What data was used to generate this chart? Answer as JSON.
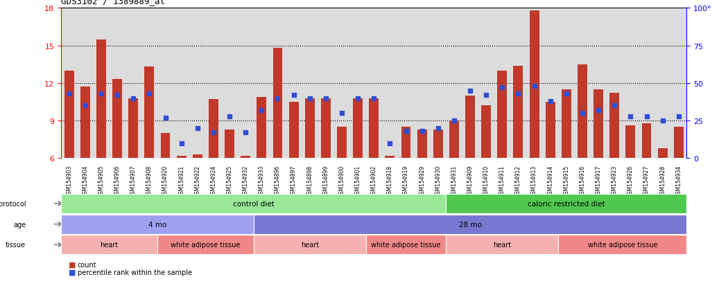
{
  "title": "GDS3102 / 1389889_at",
  "samples": [
    "GSM154903",
    "GSM154904",
    "GSM154905",
    "GSM154906",
    "GSM154907",
    "GSM154908",
    "GSM154920",
    "GSM154921",
    "GSM154922",
    "GSM154924",
    "GSM154925",
    "GSM154932",
    "GSM154933",
    "GSM154896",
    "GSM154897",
    "GSM154898",
    "GSM154899",
    "GSM154900",
    "GSM154901",
    "GSM154902",
    "GSM154918",
    "GSM154919",
    "GSM154929",
    "GSM154930",
    "GSM154931",
    "GSM154909",
    "GSM154910",
    "GSM154911",
    "GSM154912",
    "GSM154913",
    "GSM154914",
    "GSM154915",
    "GSM154916",
    "GSM154917",
    "GSM154923",
    "GSM154926",
    "GSM154927",
    "GSM154928",
    "GSM154934"
  ],
  "counts": [
    13.0,
    11.7,
    15.5,
    12.3,
    10.8,
    13.3,
    8.0,
    6.2,
    6.3,
    10.7,
    8.3,
    6.2,
    10.9,
    14.8,
    10.5,
    10.8,
    10.8,
    8.5,
    10.8,
    10.8,
    6.2,
    8.5,
    8.3,
    8.3,
    9.0,
    11.0,
    10.2,
    13.0,
    13.4,
    17.8,
    10.5,
    11.5,
    13.5,
    11.5,
    11.2,
    8.6,
    8.8,
    6.8,
    8.5
  ],
  "percentiles": [
    43,
    35,
    43,
    42,
    40,
    43,
    27,
    10,
    20,
    17,
    28,
    17,
    32,
    40,
    42,
    40,
    40,
    30,
    40,
    40,
    10,
    18,
    18,
    20,
    25,
    45,
    42,
    47,
    43,
    48,
    38,
    43,
    30,
    32,
    35,
    28,
    28,
    25,
    28
  ],
  "ylim_left": [
    6,
    18
  ],
  "ylim_right": [
    0,
    100
  ],
  "yticks_left": [
    6,
    9,
    12,
    15,
    18
  ],
  "yticks_right": [
    0,
    25,
    50,
    75,
    100
  ],
  "bar_color": "#C0392B",
  "dot_color": "#2E4FD8",
  "bg_color": "#DCDCDC",
  "grid_values": [
    9,
    12,
    15
  ],
  "growth_protocol_regions": [
    {
      "label": "control diet",
      "start": 0,
      "end": 24,
      "color": "#98E898"
    },
    {
      "label": "caloric restricted diet",
      "start": 24,
      "end": 39,
      "color": "#50C850"
    }
  ],
  "age_regions": [
    {
      "label": "4 mo",
      "start": 0,
      "end": 12,
      "color": "#A0A0F0"
    },
    {
      "label": "28 mo",
      "start": 12,
      "end": 39,
      "color": "#7878D0"
    }
  ],
  "tissue_regions": [
    {
      "label": "heart",
      "start": 0,
      "end": 6,
      "color": "#F5B0B0"
    },
    {
      "label": "white adipose tissue",
      "start": 6,
      "end": 12,
      "color": "#F08888"
    },
    {
      "label": "heart",
      "start": 12,
      "end": 19,
      "color": "#F5B0B0"
    },
    {
      "label": "white adipose tissue",
      "start": 19,
      "end": 24,
      "color": "#F08888"
    },
    {
      "label": "heart",
      "start": 24,
      "end": 31,
      "color": "#F5B0B0"
    },
    {
      "label": "white adipose tissue",
      "start": 31,
      "end": 39,
      "color": "#F08888"
    }
  ]
}
